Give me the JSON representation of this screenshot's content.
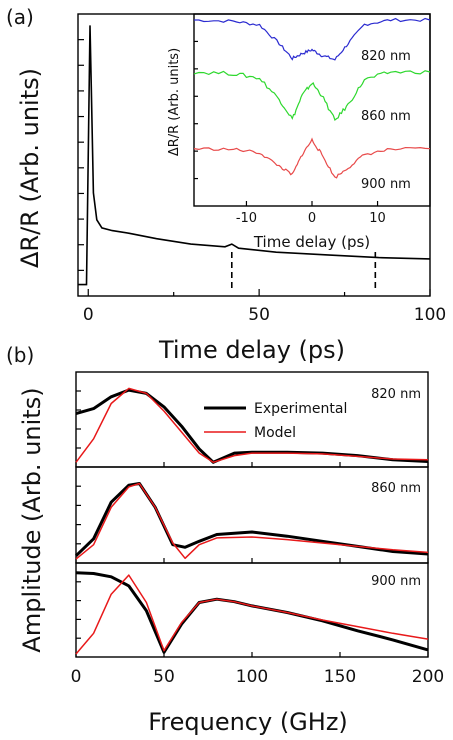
{
  "panel_a": {
    "label": "(a)",
    "ylabel": "ΔR/R (Arb. units)",
    "xlabel": "Time delay (ps)",
    "xticks": [
      "0",
      "50",
      "100"
    ],
    "inset": {
      "ylabel": "ΔR/R (Arb. units)",
      "xlabel": "Time delay (ps)",
      "xticks": [
        "-10",
        "0",
        "10"
      ],
      "series": [
        {
          "name": "820 nm",
          "color": "#2b2bd0"
        },
        {
          "name": "860 nm",
          "color": "#2ed82e"
        },
        {
          "name": "900 nm",
          "color": "#e84a4a"
        }
      ]
    }
  },
  "panel_b": {
    "label": "(b)",
    "ylabel": "Amplitude (Arb. units)",
    "xlabel": "Frequency (GHz)",
    "xticks": [
      "0",
      "50",
      "100",
      "150",
      "200"
    ],
    "legend": {
      "experimental": "Experimental",
      "model": "Model"
    },
    "subpanels": [
      "820 nm",
      "860 nm",
      "900 nm"
    ]
  },
  "chart_data": [
    {
      "type": "line",
      "title": "",
      "xlabel": "Time delay (ps)",
      "ylabel": "ΔR/R (Arb. units)",
      "xlim": [
        -3,
        100
      ],
      "grid": false,
      "annotations": [
        "dashed markers at ~42 ps and ~84 ps"
      ],
      "series": [
        {
          "name": "",
          "color": "#000000",
          "x": [
            -3,
            -0.5,
            0.5,
            0.9,
            1.5,
            2.5,
            4,
            7,
            12,
            20,
            30,
            40,
            42,
            44,
            55,
            70,
            85,
            100
          ],
          "y": [
            0.02,
            0.02,
            0.98,
            0.75,
            0.36,
            0.26,
            0.23,
            0.22,
            0.21,
            0.19,
            0.17,
            0.16,
            0.17,
            0.155,
            0.14,
            0.13,
            0.12,
            0.115
          ]
        }
      ]
    },
    {
      "type": "line",
      "title": "inset",
      "xlabel": "Time delay (ps)",
      "ylabel": "ΔR/R (Arb. units)",
      "xlim": [
        -18,
        18
      ],
      "series": [
        {
          "name": "820 nm",
          "color": "#2b2bd0",
          "x": [
            -18,
            -12,
            -8,
            -5,
            -3,
            -1.5,
            0,
            1.5,
            3.5,
            5.5,
            8,
            12,
            18
          ],
          "y": [
            1.0,
            0.98,
            0.92,
            0.62,
            0.38,
            0.46,
            0.52,
            0.43,
            0.36,
            0.62,
            0.93,
            1.0,
            1.0
          ]
        },
        {
          "name": "860 nm",
          "color": "#2ed82e",
          "x": [
            -18,
            -12,
            -8,
            -5,
            -3,
            -1.5,
            0,
            1.5,
            3.5,
            5.5,
            8,
            12,
            18
          ],
          "y": [
            1.0,
            0.98,
            0.92,
            0.65,
            0.4,
            0.7,
            0.86,
            0.7,
            0.38,
            0.58,
            0.9,
            1.0,
            1.0
          ]
        },
        {
          "name": "900 nm",
          "color": "#e84a4a",
          "x": [
            -18,
            -12,
            -8,
            -5,
            -3,
            -1.5,
            0,
            1.5,
            3.5,
            5.5,
            8,
            12,
            18
          ],
          "y": [
            0.85,
            0.84,
            0.78,
            0.55,
            0.4,
            0.75,
            1.0,
            0.75,
            0.35,
            0.52,
            0.75,
            0.84,
            0.85
          ]
        }
      ]
    },
    {
      "type": "line",
      "title": "820 nm",
      "xlabel": "Frequency (GHz)",
      "ylabel": "Amplitude (Arb. units)",
      "xlim": [
        0,
        200
      ],
      "series": [
        {
          "name": "Experimental",
          "color": "#000000",
          "x": [
            0,
            10,
            20,
            30,
            40,
            50,
            60,
            70,
            78,
            90,
            100,
            120,
            140,
            160,
            180,
            200
          ],
          "y": [
            0.6,
            0.66,
            0.8,
            0.88,
            0.84,
            0.68,
            0.45,
            0.18,
            0.02,
            0.13,
            0.14,
            0.14,
            0.13,
            0.1,
            0.05,
            0.03
          ]
        },
        {
          "name": "Model",
          "color": "#e8191a",
          "x": [
            0,
            10,
            20,
            30,
            40,
            50,
            60,
            70,
            78,
            90,
            100,
            120,
            140,
            160,
            180,
            200
          ],
          "y": [
            0.02,
            0.3,
            0.72,
            0.9,
            0.84,
            0.63,
            0.38,
            0.13,
            0.02,
            0.1,
            0.13,
            0.13,
            0.12,
            0.09,
            0.06,
            0.05
          ]
        }
      ]
    },
    {
      "type": "line",
      "title": "860 nm",
      "xlabel": "Frequency (GHz)",
      "ylabel": "Amplitude (Arb. units)",
      "xlim": [
        0,
        200
      ],
      "series": [
        {
          "name": "Experimental",
          "color": "#000000",
          "x": [
            0,
            10,
            20,
            30,
            36,
            45,
            55,
            62,
            70,
            80,
            100,
            120,
            140,
            160,
            180,
            200
          ],
          "y": [
            0.05,
            0.25,
            0.68,
            0.88,
            0.9,
            0.62,
            0.18,
            0.15,
            0.22,
            0.3,
            0.33,
            0.28,
            0.22,
            0.16,
            0.1,
            0.07
          ]
        },
        {
          "name": "Model",
          "color": "#e8191a",
          "x": [
            0,
            10,
            20,
            30,
            36,
            45,
            55,
            62,
            70,
            80,
            100,
            120,
            140,
            160,
            180,
            200
          ],
          "y": [
            0.01,
            0.18,
            0.62,
            0.86,
            0.9,
            0.62,
            0.2,
            0.02,
            0.18,
            0.26,
            0.27,
            0.24,
            0.2,
            0.16,
            0.12,
            0.09
          ]
        }
      ]
    },
    {
      "type": "line",
      "title": "900 nm",
      "xlabel": "Frequency (GHz)",
      "ylabel": "Amplitude (Arb. units)",
      "xlim": [
        0,
        200
      ],
      "xticks": [
        0,
        50,
        100,
        150,
        200
      ],
      "series": [
        {
          "name": "Experimental",
          "color": "#000000",
          "x": [
            0,
            10,
            20,
            30,
            40,
            50,
            60,
            70,
            80,
            90,
            100,
            120,
            140,
            160,
            180,
            200
          ],
          "y": [
            0.98,
            0.97,
            0.93,
            0.82,
            0.52,
            0.02,
            0.36,
            0.62,
            0.66,
            0.63,
            0.58,
            0.5,
            0.4,
            0.28,
            0.17,
            0.05
          ]
        },
        {
          "name": "Model",
          "color": "#e8191a",
          "x": [
            0,
            10,
            20,
            30,
            40,
            50,
            60,
            70,
            80,
            90,
            100,
            120,
            140,
            160,
            180,
            200
          ],
          "y": [
            0.0,
            0.25,
            0.72,
            0.95,
            0.62,
            0.04,
            0.38,
            0.62,
            0.66,
            0.63,
            0.58,
            0.5,
            0.41,
            0.33,
            0.25,
            0.18
          ]
        }
      ]
    }
  ]
}
